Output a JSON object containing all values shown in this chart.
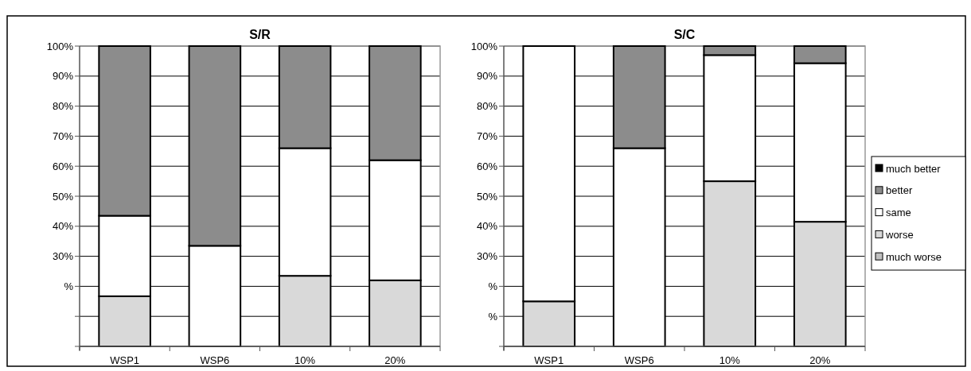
{
  "chart_data": [
    {
      "type": "bar",
      "title": "S/R",
      "stacked": true,
      "categories": [
        "WSP1",
        "WSP6",
        "10%",
        "20%"
      ],
      "ylim": [
        0,
        100
      ],
      "yticks": [
        {
          "value": 0,
          "label": null
        },
        {
          "value": 10,
          "label": null
        },
        {
          "value": 20,
          "label": "%"
        },
        {
          "value": 30,
          "label": "30%"
        },
        {
          "value": 40,
          "label": "40%"
        },
        {
          "value": 50,
          "label": "50%"
        },
        {
          "value": 60,
          "label": "60%"
        },
        {
          "value": 70,
          "label": "70%"
        },
        {
          "value": 80,
          "label": "80%"
        },
        {
          "value": 90,
          "label": "90%"
        },
        {
          "value": 100,
          "label": "100%"
        }
      ],
      "grid": "y",
      "legend": false,
      "series": [
        {
          "color": "#c0c0c0",
          "values": [
            0,
            0,
            0,
            0
          ]
        },
        {
          "color": "#d9d9d9",
          "values": [
            16.7,
            0,
            23.5,
            22
          ]
        },
        {
          "color": "#ffffff",
          "values": [
            26.8,
            33.5,
            42.5,
            40
          ]
        },
        {
          "color": "#8c8c8c",
          "values": [
            56.5,
            66.5,
            34,
            38
          ]
        },
        {
          "color": "#000000",
          "values": [
            0,
            0,
            0,
            0
          ]
        }
      ]
    },
    {
      "type": "bar",
      "title": "S/C",
      "stacked": true,
      "categories": [
        "WSP1",
        "WSP6",
        "10%",
        "20%"
      ],
      "ylim": [
        0,
        100
      ],
      "yticks": [
        {
          "value": 0,
          "label": null
        },
        {
          "value": 10,
          "label": "%"
        },
        {
          "value": 20,
          "label": "%"
        },
        {
          "value": 30,
          "label": "30%"
        },
        {
          "value": 40,
          "label": "40%"
        },
        {
          "value": 50,
          "label": "50%"
        },
        {
          "value": 60,
          "label": "60%"
        },
        {
          "value": 70,
          "label": "70%"
        },
        {
          "value": 80,
          "label": "80%"
        },
        {
          "value": 90,
          "label": "90%"
        },
        {
          "value": 100,
          "label": "100%"
        }
      ],
      "grid": "y",
      "legend": "right",
      "series": [
        {
          "name": "much worse",
          "color": "#c0c0c0",
          "values": [
            0,
            0,
            0,
            0
          ]
        },
        {
          "name": "worse",
          "color": "#d9d9d9",
          "values": [
            15,
            0,
            55,
            41.5
          ]
        },
        {
          "name": "same",
          "color": "#ffffff",
          "values": [
            85,
            66,
            42,
            52.8
          ]
        },
        {
          "name": "better",
          "color": "#8c8c8c",
          "values": [
            0,
            34,
            3,
            5.7
          ]
        },
        {
          "name": "much better",
          "color": "#000000",
          "values": [
            0,
            0,
            0,
            0
          ]
        }
      ]
    }
  ]
}
